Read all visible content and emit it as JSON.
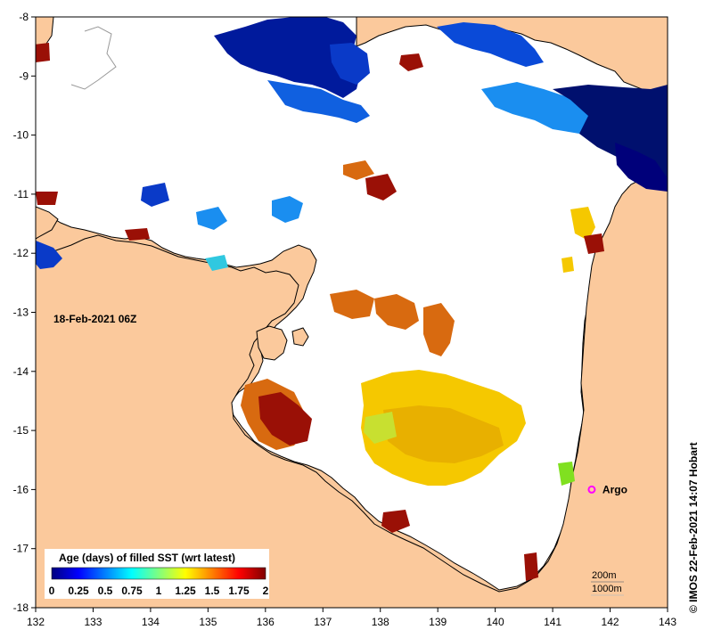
{
  "map": {
    "timestamp": "18-Feb-2021 06Z",
    "credit": "©  IMOS 22-Feb-2021 14:07 Hobart",
    "lon_ticks": [
      "132",
      "133",
      "134",
      "135",
      "136",
      "137",
      "138",
      "139",
      "140",
      "141",
      "142",
      "143"
    ],
    "lat_ticks": [
      "-8",
      "-9",
      "-10",
      "-11",
      "-12",
      "-13",
      "-14",
      "-15",
      "-16",
      "-17",
      "-18"
    ],
    "lon_range": [
      132,
      143
    ],
    "lat_range": [
      -18,
      -8
    ],
    "colors": {
      "land": "#fbc99c",
      "sea": "#ffffff",
      "coast": "#000000"
    }
  },
  "legend": {
    "title": "Age (days) of filled SST (wrt latest)",
    "ticks": [
      "0",
      "0.25",
      "0.5",
      "0.75",
      "1",
      "1.25",
      "1.5",
      "1.75",
      "2"
    ],
    "colorstops": [
      "#00007f",
      "#0000ff",
      "#007fff",
      "#00ffff",
      "#7fff7f",
      "#ffff00",
      "#ff7f00",
      "#ff0000",
      "#7f0000"
    ]
  },
  "markers": [
    {
      "label": "Argo",
      "lon": 141.68,
      "lat": -16.0,
      "color": "#ff00ff"
    }
  ],
  "contours": {
    "c1": "200m",
    "c2": "1000m"
  }
}
